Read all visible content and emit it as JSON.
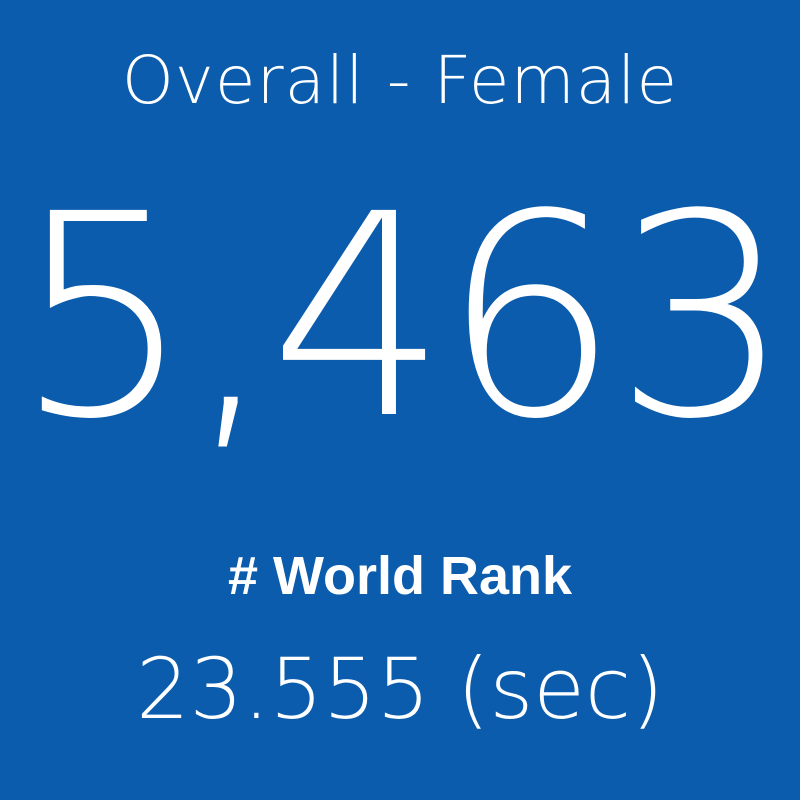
{
  "tile": {
    "title": "Overall - Female",
    "value": "5,463",
    "label": "# World Rank",
    "time": "23.555 (sec)"
  }
}
